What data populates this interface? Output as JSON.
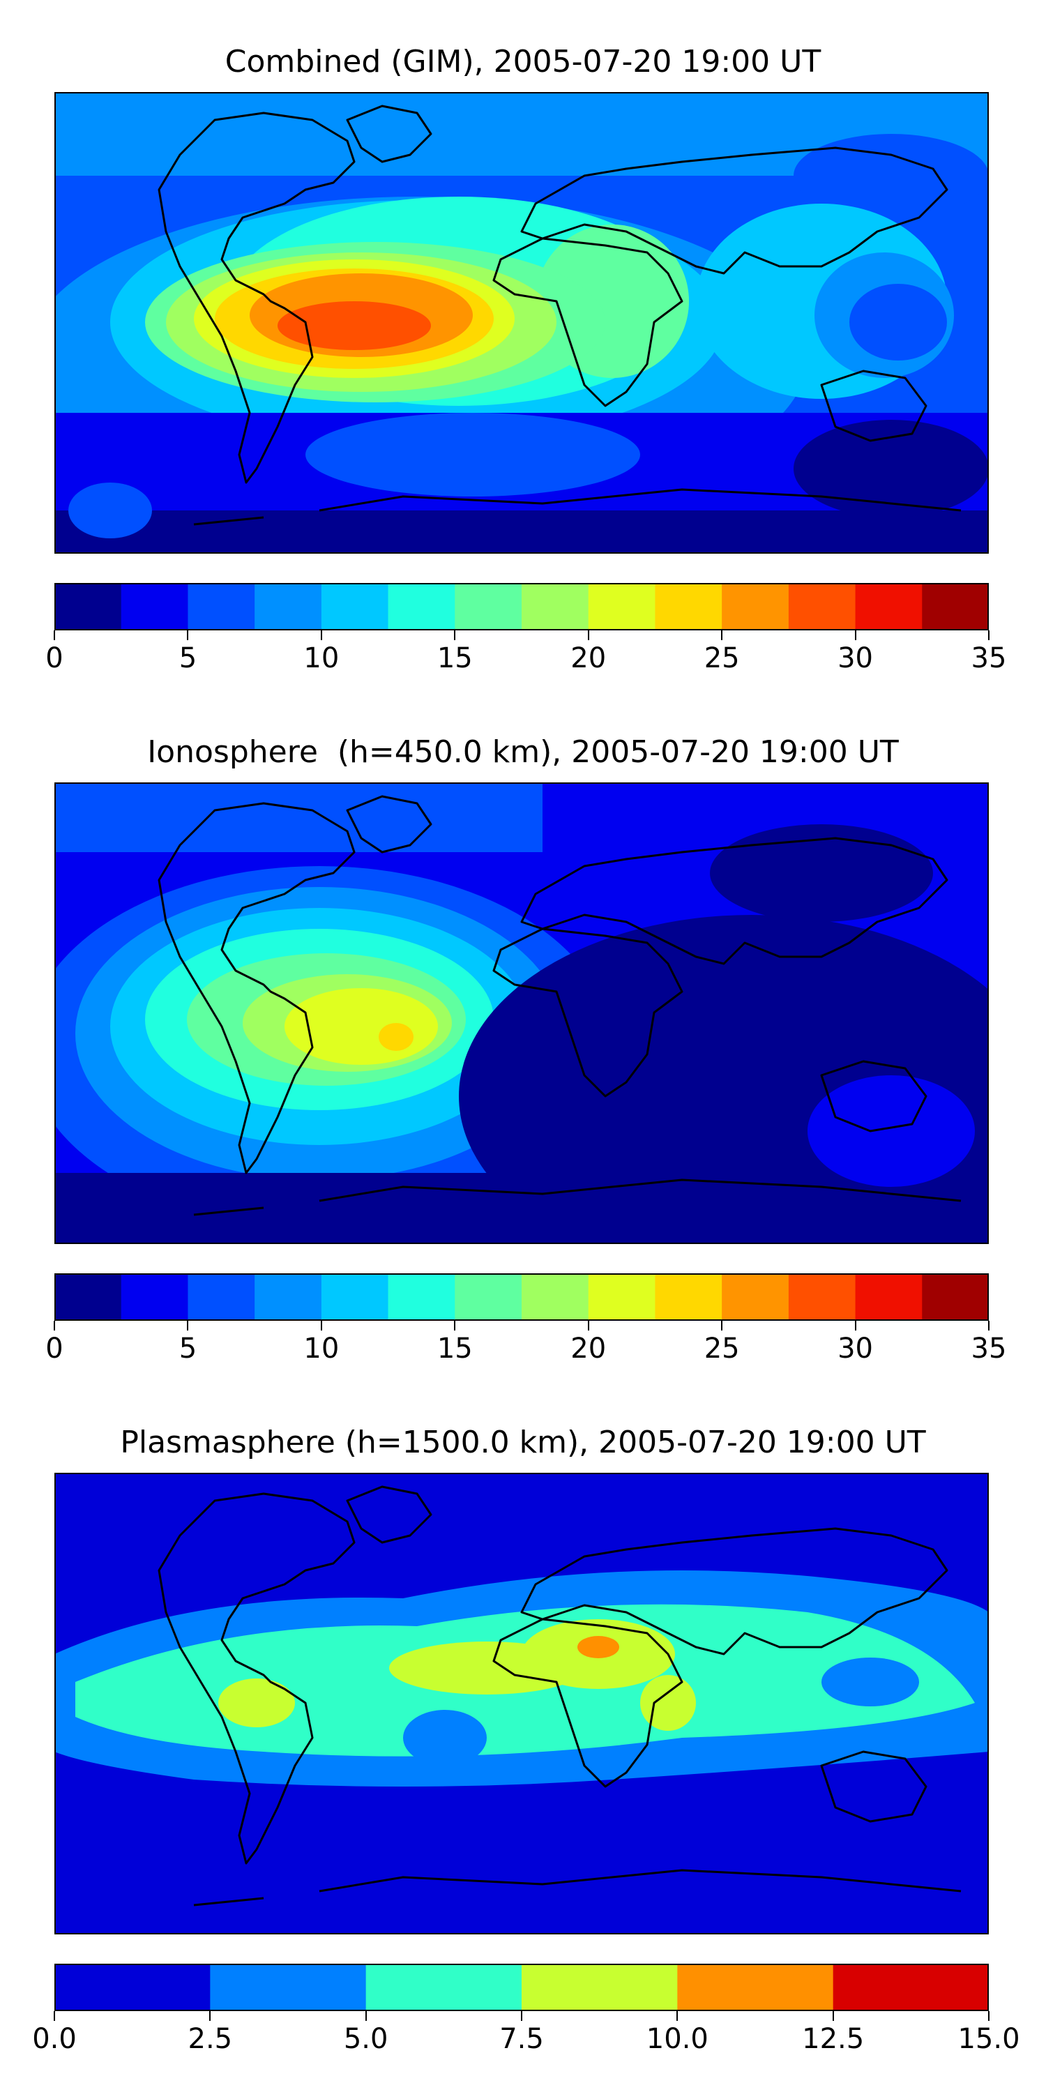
{
  "panels": [
    {
      "title": "Combined (GIM), 2005-07-20 19:00 UT",
      "colorbar": {
        "ticks": [
          "0",
          "5",
          "10",
          "15",
          "20",
          "25",
          "30",
          "35"
        ],
        "min": 0,
        "max": 35,
        "colors": [
          "#00008f",
          "#0000f0",
          "#0050ff",
          "#0090ff",
          "#00c8ff",
          "#20ffdf",
          "#5fffa0",
          "#a0ff60",
          "#dfff20",
          "#ffd800",
          "#ff9400",
          "#ff5000",
          "#f01000",
          "#a00000"
        ]
      }
    },
    {
      "title": "Ionosphere  (h=450.0 km), 2005-07-20 19:00 UT",
      "colorbar": {
        "ticks": [
          "0",
          "5",
          "10",
          "15",
          "20",
          "25",
          "30",
          "35"
        ],
        "min": 0,
        "max": 35,
        "colors": [
          "#00008f",
          "#0000f0",
          "#0050ff",
          "#0090ff",
          "#00c8ff",
          "#20ffdf",
          "#5fffa0",
          "#a0ff60",
          "#dfff20",
          "#ffd800",
          "#ff9400",
          "#ff5000",
          "#f01000",
          "#a00000"
        ]
      }
    },
    {
      "title": "Plasmasphere (h=1500.0 km), 2005-07-20 19:00 UT",
      "colorbar": {
        "ticks": [
          "0.0",
          "2.5",
          "5.0",
          "7.5",
          "10.0",
          "12.5",
          "15.0"
        ],
        "min": 0,
        "max": 15,
        "colors": [
          "#0000d8",
          "#0080ff",
          "#30ffc8",
          "#c8ff30",
          "#ff9000",
          "#d80000"
        ]
      }
    }
  ]
}
